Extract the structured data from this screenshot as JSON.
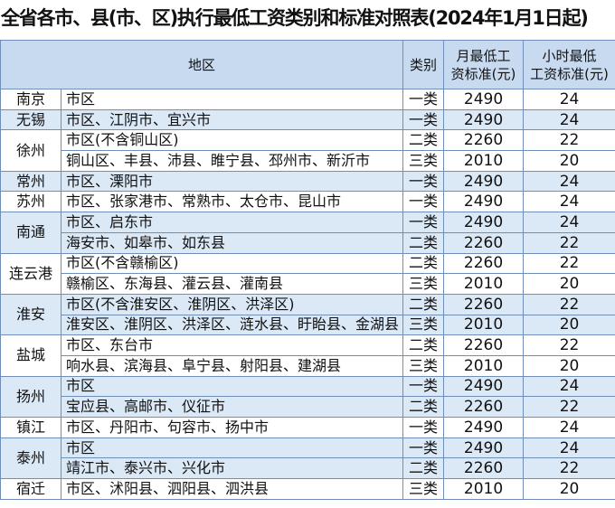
{
  "title": "全省各市、县(市、区)执行最低工资类别和标准对照表(2024年1月1日起)",
  "table": {
    "header": {
      "area": "地区",
      "type": "类别",
      "monthly": [
        "月最低工",
        "资标准(元)"
      ],
      "hourly": [
        "小时最低",
        "工资标准(元)"
      ]
    },
    "groups": [
      {
        "city": "南京",
        "rows": [
          [
            "市区",
            "一类",
            2490,
            24
          ]
        ]
      },
      {
        "city": "无锡",
        "rows": [
          [
            "市区、江阴市、宜兴市",
            "一类",
            2490,
            24
          ]
        ]
      },
      {
        "city": "徐州",
        "rows": [
          [
            "市区(不含铜山区)",
            "二类",
            2260,
            22
          ],
          [
            "铜山区、丰县、沛县、睢宁县、邳州市、新沂市",
            "三类",
            2010,
            20
          ]
        ]
      },
      {
        "city": "常州",
        "rows": [
          [
            "市区、溧阳市",
            "一类",
            2490,
            24
          ]
        ]
      },
      {
        "city": "苏州",
        "rows": [
          [
            "市区、张家港市、常熟市、太仓市、昆山市",
            "一类",
            2490,
            24
          ]
        ]
      },
      {
        "city": "南通",
        "rows": [
          [
            "市区、启东市",
            "一类",
            2490,
            24
          ],
          [
            "海安市、如皋市、如东县",
            "二类",
            2260,
            22
          ]
        ]
      },
      {
        "city": "连云港",
        "rows": [
          [
            "市区(不含赣榆区)",
            "二类",
            2260,
            22
          ],
          [
            "赣榆区、东海县、灌云县、灌南县",
            "三类",
            2010,
            20
          ]
        ]
      },
      {
        "city": "淮安",
        "rows": [
          [
            "市区(不含淮安区、淮阴区、洪泽区)",
            "二类",
            2260,
            22
          ],
          [
            "淮安区、淮阴区、洪泽区、涟水县、盱眙县、金湖县",
            "三类",
            2010,
            20
          ]
        ]
      },
      {
        "city": "盐城",
        "rows": [
          [
            "市区、东台市",
            "二类",
            2260,
            22
          ],
          [
            "响水县、滨海县、阜宁县、射阳县、建湖县",
            "三类",
            2010,
            20
          ]
        ]
      },
      {
        "city": "扬州",
        "rows": [
          [
            "市区",
            "一类",
            2490,
            24
          ],
          [
            "宝应县、高邮市、仪征市",
            "二类",
            2260,
            22
          ]
        ]
      },
      {
        "city": "镇江",
        "rows": [
          [
            "市区、丹阳市、句容市、扬中市",
            "一类",
            2490,
            24
          ]
        ]
      },
      {
        "city": "泰州",
        "rows": [
          [
            "市区",
            "一类",
            2490,
            24
          ],
          [
            "靖江市、泰兴市、兴化市",
            "二类",
            2260,
            22
          ]
        ]
      },
      {
        "city": "宿迁",
        "rows": [
          [
            "市区、沭阳县、泗阳县、泗洪县",
            "三类",
            2010,
            20
          ]
        ]
      }
    ]
  }
}
